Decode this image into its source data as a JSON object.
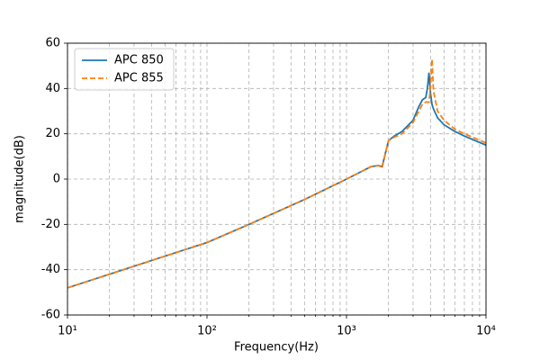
{
  "chart_data": {
    "type": "line",
    "x_label": "Frequency(Hz)",
    "y_label": "magnitude(dB)",
    "x_log": true,
    "xlim": [
      10,
      10000
    ],
    "xticks": [
      {
        "value": 10,
        "label": "10¹"
      },
      {
        "value": 100,
        "label": "10²"
      },
      {
        "value": 1000,
        "label": "10³"
      },
      {
        "value": 10000,
        "label": "10⁴"
      }
    ],
    "x_minor_ticks": [
      20,
      30,
      40,
      50,
      60,
      70,
      80,
      90,
      200,
      300,
      400,
      500,
      600,
      700,
      800,
      900,
      2000,
      3000,
      4000,
      5000,
      6000,
      7000,
      8000,
      9000
    ],
    "ylim": [
      -60,
      60
    ],
    "yticks": [
      -60,
      -40,
      -20,
      0,
      20,
      40,
      60
    ],
    "grid": true,
    "legend": "upper-left",
    "x": [
      10,
      20,
      50,
      100,
      200,
      500,
      1000,
      1500,
      1700,
      1800,
      2000,
      2200,
      2500,
      3000,
      3300,
      3500,
      3700,
      3800,
      3900,
      4000,
      4100,
      4200,
      4500,
      5000,
      6000,
      7000,
      8000,
      10000
    ],
    "series": [
      {
        "name": "APC 850",
        "color": "#1f77b4",
        "linestyle": "solid",
        "values": [
          -48,
          -42,
          -34,
          -28,
          -20,
          -9,
          0,
          5.5,
          6,
          5.5,
          17,
          19,
          21,
          26,
          32,
          35,
          36,
          40,
          47,
          38,
          33,
          31,
          27,
          24,
          21,
          19,
          17.5,
          15
        ]
      },
      {
        "name": "APC 855",
        "color": "#ff7f0e",
        "linestyle": "dashed",
        "values": [
          -48,
          -42,
          -34,
          -28,
          -20,
          -9,
          0,
          5.5,
          6,
          5,
          17,
          18.5,
          20,
          25,
          30,
          33,
          34,
          34,
          34,
          40,
          53,
          39,
          30,
          26,
          22,
          20,
          18.5,
          16
        ]
      }
    ]
  }
}
